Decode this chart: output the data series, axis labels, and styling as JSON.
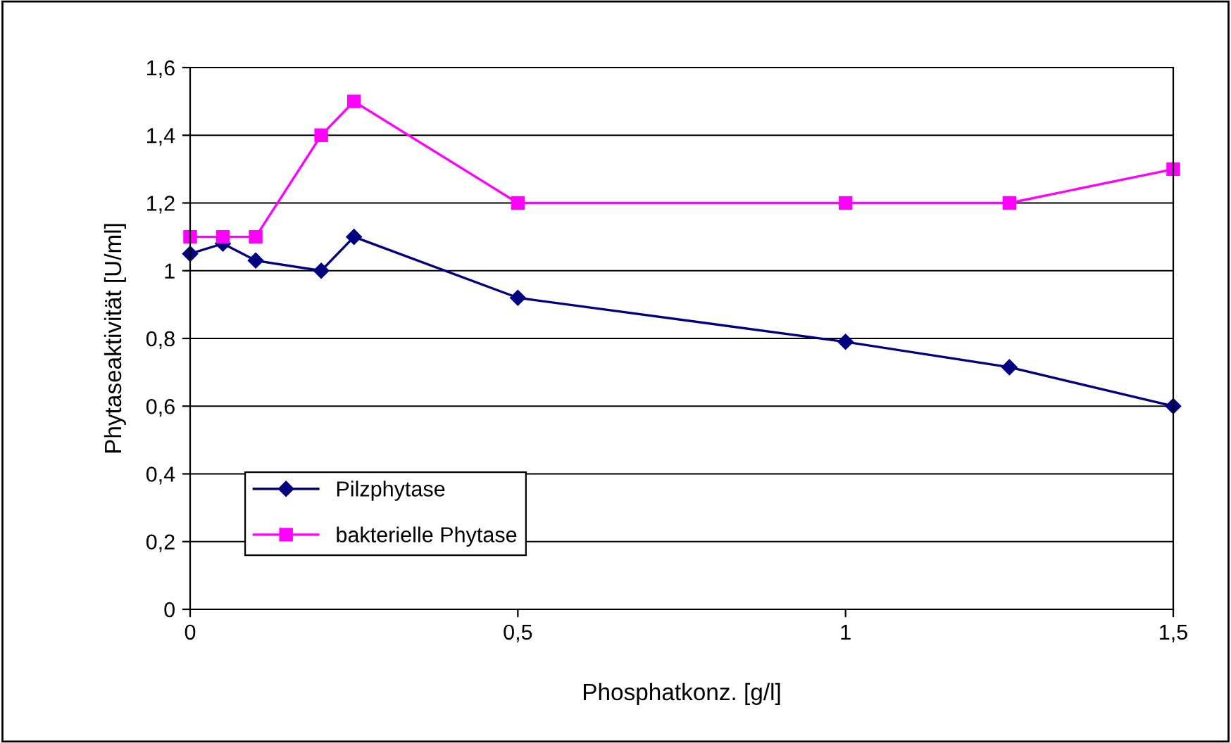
{
  "chart_data": {
    "type": "line",
    "xlabel": "Phosphatkonz. [g/l]",
    "ylabel": "Phytaseaktivität [U/ml]",
    "x": [
      0,
      0.05,
      0.1,
      0.2,
      0.25,
      0.5,
      1,
      1.25,
      1.5
    ],
    "series": [
      {
        "name": "Pilzphytase",
        "color": "#000080",
        "marker": "diamond",
        "values": [
          1.05,
          1.08,
          1.03,
          1.0,
          1.1,
          0.92,
          0.79,
          0.715,
          0.6
        ]
      },
      {
        "name": "bakterielle Phytase",
        "color": "#ff00ff",
        "marker": "square",
        "values": [
          1.1,
          1.1,
          1.1,
          1.4,
          1.5,
          1.2,
          1.2,
          1.2,
          1.3
        ]
      }
    ],
    "xlim": [
      0,
      1.5
    ],
    "xticks": [
      0,
      {
        "value": 0.5,
        "label": "0,5"
      },
      1,
      {
        "value": 1.5,
        "label": "1,5"
      }
    ],
    "ylim": [
      0,
      1.6
    ],
    "yticks": [
      0,
      {
        "value": 0.2,
        "label": "0,2"
      },
      {
        "value": 0.4,
        "label": "0,4"
      },
      {
        "value": 0.6,
        "label": "0,6"
      },
      {
        "value": 0.8,
        "label": "0,8"
      },
      1,
      {
        "value": 1.2,
        "label": "1,2"
      },
      {
        "value": 1.4,
        "label": "1,4"
      },
      {
        "value": 1.6,
        "label": "1,6"
      }
    ],
    "grid": "y",
    "legend": "bottom left",
    "line_style": "solid"
  }
}
